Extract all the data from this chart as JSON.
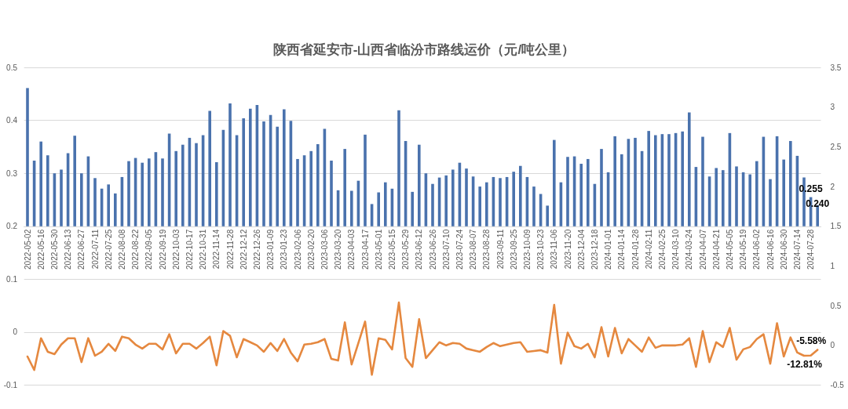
{
  "chart_data": [
    {
      "type": "bar",
      "title": "陕西省延安市-山西省临汾市路线运价（元/吨公里）",
      "categories": [
        "2022-05-02",
        null,
        "2022-05-16",
        null,
        "2022-05-30",
        null,
        "2022-06-13",
        null,
        "2022-06-27",
        null,
        "2022-07-11",
        null,
        "2022-07-25",
        null,
        "2022-08-08",
        null,
        "2022-08-22",
        null,
        "2022-09-05",
        null,
        "2022-09-19",
        null,
        "2022-10-03",
        null,
        "2022-10-17",
        null,
        "2022-10-31",
        null,
        "2022-11-14",
        null,
        "2022-11-28",
        null,
        "2022-12-12",
        null,
        "2022-12-26",
        null,
        "2023-01-09",
        null,
        "2023-01-23",
        null,
        "2023-02-06",
        null,
        "2023-02-20",
        null,
        "2023-03-06",
        null,
        "2023-03-20",
        null,
        "2023-04-03",
        null,
        "2023-04-17",
        null,
        "2023-05-01",
        null,
        "2023-05-15",
        null,
        "2023-05-29",
        null,
        "2023-06-12",
        null,
        "2023-06-26",
        null,
        "2023-07-10",
        null,
        "2023-07-24",
        null,
        "2023-08-07",
        null,
        "2023-08-28",
        null,
        "2023-09-11",
        null,
        "2023-09-25",
        null,
        "2023-10-09",
        null,
        "2023-10-23",
        null,
        "2023-11-06",
        null,
        "2023-11-20",
        null,
        "2023-12-04",
        null,
        "2023-12-18",
        null,
        "2024-01-01",
        null,
        "2024-01-14",
        null,
        "2024-01-28",
        null,
        "2024-02-11",
        null,
        "2024-02-25",
        null,
        "2024-03-10",
        null,
        "2024-03-24",
        null,
        "2024-04-07",
        null,
        "2024-04-21",
        null,
        "2024-05-05",
        null,
        "2024-05-19",
        null,
        "2024-06-02",
        null,
        "2024-06-16",
        null,
        "2024-06-30",
        null,
        "2024-07-14",
        null,
        "2024-07-28",
        null
      ],
      "series": [
        {
          "color": "#4a72ad",
          "values": [
            0.461,
            0.324,
            0.36,
            0.334,
            0.3,
            0.307,
            0.338,
            0.371,
            0.3,
            0.332,
            0.291,
            0.271,
            0.279,
            0.262,
            0.293,
            0.323,
            0.329,
            0.32,
            0.328,
            0.34,
            0.328,
            0.375,
            0.342,
            0.354,
            0.367,
            0.357,
            0.372,
            0.418,
            0.321,
            0.382,
            0.432,
            0.372,
            0.404,
            0.422,
            0.429,
            0.398,
            0.41,
            0.388,
            0.421,
            0.399,
            0.327,
            0.334,
            0.342,
            0.355,
            0.384,
            0.324,
            0.268,
            0.346,
            0.267,
            0.286,
            0.373,
            0.242,
            0.264,
            0.283,
            0.271,
            0.419,
            0.361,
            0.265,
            0.354,
            0.3,
            0.28,
            0.292,
            0.296,
            0.307,
            0.32,
            0.309,
            0.294,
            0.275,
            0.283,
            0.293,
            0.291,
            0.293,
            0.303,
            0.314,
            0.293,
            0.275,
            0.261,
            0.239,
            0.363,
            0.283,
            0.331,
            0.332,
            0.318,
            0.327,
            0.28,
            0.346,
            0.302,
            0.37,
            0.336,
            0.365,
            0.367,
            0.342,
            0.38,
            0.372,
            0.374,
            0.374,
            0.376,
            0.379,
            0.415,
            0.312,
            0.369,
            0.294,
            0.31,
            0.306,
            0.376,
            0.313,
            0.302,
            0.298,
            0.323,
            0.369,
            0.289,
            0.37,
            0.326,
            0.361,
            0.333,
            0.292,
            0.255,
            0.24
          ],
          "value_labels": [
            null,
            null,
            null,
            null,
            null,
            null,
            null,
            null,
            null,
            null,
            null,
            null,
            null,
            null,
            null,
            null,
            null,
            null,
            null,
            null,
            null,
            null,
            null,
            null,
            null,
            null,
            null,
            null,
            null,
            null,
            null,
            null,
            null,
            null,
            null,
            null,
            null,
            null,
            null,
            null,
            null,
            null,
            null,
            null,
            null,
            null,
            null,
            null,
            null,
            null,
            null,
            null,
            null,
            null,
            null,
            null,
            null,
            null,
            null,
            null,
            null,
            null,
            null,
            null,
            null,
            null,
            null,
            null,
            null,
            null,
            null,
            null,
            null,
            null,
            null,
            null,
            null,
            null,
            null,
            null,
            null,
            null,
            null,
            null,
            null,
            null,
            null,
            null,
            null,
            null,
            null,
            null,
            null,
            null,
            null,
            null,
            null,
            null,
            null,
            null,
            null,
            null,
            null,
            null,
            null,
            null,
            null,
            null,
            null,
            null,
            null,
            null,
            null,
            null,
            null,
            null,
            "0.255",
            "0.240"
          ]
        }
      ],
      "ylim": [
        0.2,
        0.5
      ],
      "yticks": [
        0.2,
        0.3,
        0.4,
        0.5
      ],
      "y2lim": [
        1.5,
        3.5
      ],
      "y2ticks": [
        1.5,
        2,
        2.5,
        3,
        3.5
      ],
      "grid": "y"
    },
    {
      "type": "line",
      "categories": [
        "2022-05-02",
        null,
        "2022-05-16",
        null,
        "2022-05-30",
        null,
        "2022-06-13",
        null,
        "2022-06-27",
        null,
        "2022-07-11",
        null,
        "2022-07-25",
        null,
        "2022-08-08",
        null,
        "2022-08-22",
        null,
        "2022-09-05",
        null,
        "2022-09-19",
        null,
        "2022-10-03",
        null,
        "2022-10-17",
        null,
        "2022-10-31",
        null,
        "2022-11-14",
        null,
        "2022-11-28",
        null,
        "2022-12-12",
        null,
        "2022-12-26",
        null,
        "2023-01-09",
        null,
        "2023-01-23",
        null,
        "2023-02-06",
        null,
        "2023-02-20",
        null,
        "2023-03-06",
        null,
        "2023-03-20",
        null,
        "2023-04-03",
        null,
        "2023-04-17",
        null,
        "2023-05-01",
        null,
        "2023-05-15",
        null,
        "2023-05-29",
        null,
        "2023-06-12",
        null,
        "2023-06-26",
        null,
        "2023-07-10",
        null,
        "2023-07-24",
        null,
        "2023-08-07",
        null,
        "2023-08-28",
        null,
        "2023-09-11",
        null,
        "2023-09-25",
        null,
        "2023-10-09",
        null,
        "2023-10-23",
        null,
        "2023-11-06",
        null,
        "2023-11-20",
        null,
        "2023-12-04",
        null,
        "2023-12-18",
        null,
        "2024-01-01",
        null,
        "2024-01-14",
        null,
        "2024-01-28",
        null,
        "2024-02-11",
        null,
        "2024-02-25",
        null,
        "2024-03-10",
        null,
        "2024-03-24",
        null,
        "2024-04-07",
        null,
        "2024-04-21",
        null,
        "2024-05-05",
        null,
        "2024-05-19",
        null,
        "2024-06-02",
        null,
        "2024-06-16",
        null,
        "2024-06-30",
        null,
        "2024-07-14",
        null,
        "2024-07-28",
        null
      ],
      "series": [
        {
          "color": "#e5883f",
          "axis": "y2",
          "values": [
            -0.14,
            -0.31,
            0.09,
            -0.08,
            -0.11,
            0.01,
            0.09,
            0.09,
            -0.21,
            0.09,
            -0.13,
            -0.08,
            0.02,
            -0.07,
            0.11,
            0.09,
            0.01,
            -0.04,
            0.02,
            0.02,
            -0.05,
            0.14,
            -0.1,
            0.02,
            0.02,
            -0.04,
            0.03,
            0.11,
            -0.25,
            0.18,
            0.12,
            -0.15,
            0.08,
            0.04,
            0,
            -0.08,
            0.03,
            -0.07,
            0.08,
            -0.09,
            -0.2,
            0.01,
            0.02,
            0.04,
            0.08,
            -0.17,
            -0.19,
            0.29,
            -0.24,
            0.03,
            0.3,
            -0.37,
            0.09,
            0.07,
            -0.05,
            0.54,
            -0.16,
            -0.27,
            0.33,
            -0.16,
            -0.06,
            0.04,
            0,
            0.03,
            0.02,
            -0.04,
            -0.06,
            -0.08,
            -0.02,
            0.03,
            -0.01,
            0.01,
            0.03,
            0.04,
            -0.08,
            -0.07,
            -0.06,
            -0.09,
            0.51,
            -0.23,
            0.16,
            -0.01,
            -0.04,
            0.02,
            -0.15,
            0.23,
            -0.14,
            0.22,
            -0.1,
            0.08,
            0,
            -0.08,
            0.1,
            -0.03,
            0,
            0,
            0,
            0.01,
            0.09,
            -0.27,
            0.18,
            -0.21,
            0.04,
            -0.02,
            0.22,
            -0.18,
            -0.05,
            -0.02,
            0.08,
            0.14,
            -0.23,
            0.28,
            -0.14,
            0.1,
            -0.09,
            -0.13,
            -0.1281,
            -0.0558
          ],
          "value_labels": [
            null,
            null,
            null,
            null,
            null,
            null,
            null,
            null,
            null,
            null,
            null,
            null,
            null,
            null,
            null,
            null,
            null,
            null,
            null,
            null,
            null,
            null,
            null,
            null,
            null,
            null,
            null,
            null,
            null,
            null,
            null,
            null,
            null,
            null,
            null,
            null,
            null,
            null,
            null,
            null,
            null,
            null,
            null,
            null,
            null,
            null,
            null,
            null,
            null,
            null,
            null,
            null,
            null,
            null,
            null,
            null,
            null,
            null,
            null,
            null,
            null,
            null,
            null,
            null,
            null,
            null,
            null,
            null,
            null,
            null,
            null,
            null,
            null,
            null,
            null,
            null,
            null,
            null,
            null,
            null,
            null,
            null,
            null,
            null,
            null,
            null,
            null,
            null,
            null,
            null,
            null,
            null,
            null,
            null,
            null,
            null,
            null,
            null,
            null,
            null,
            null,
            null,
            null,
            null,
            null,
            null,
            null,
            null,
            null,
            null,
            null,
            null,
            null,
            null,
            null,
            null,
            "-12.81%",
            "-5.58%"
          ]
        }
      ],
      "ylim": [
        -0.1,
        0.2
      ],
      "yticks": [
        -0.1,
        0,
        0.1
      ],
      "y2lim": [
        -0.5,
        1.5
      ],
      "y2ticks": [
        -0.5,
        0,
        0.5,
        1
      ],
      "grid": "y",
      "tick_labels": "y",
      "marker": "none"
    }
  ]
}
